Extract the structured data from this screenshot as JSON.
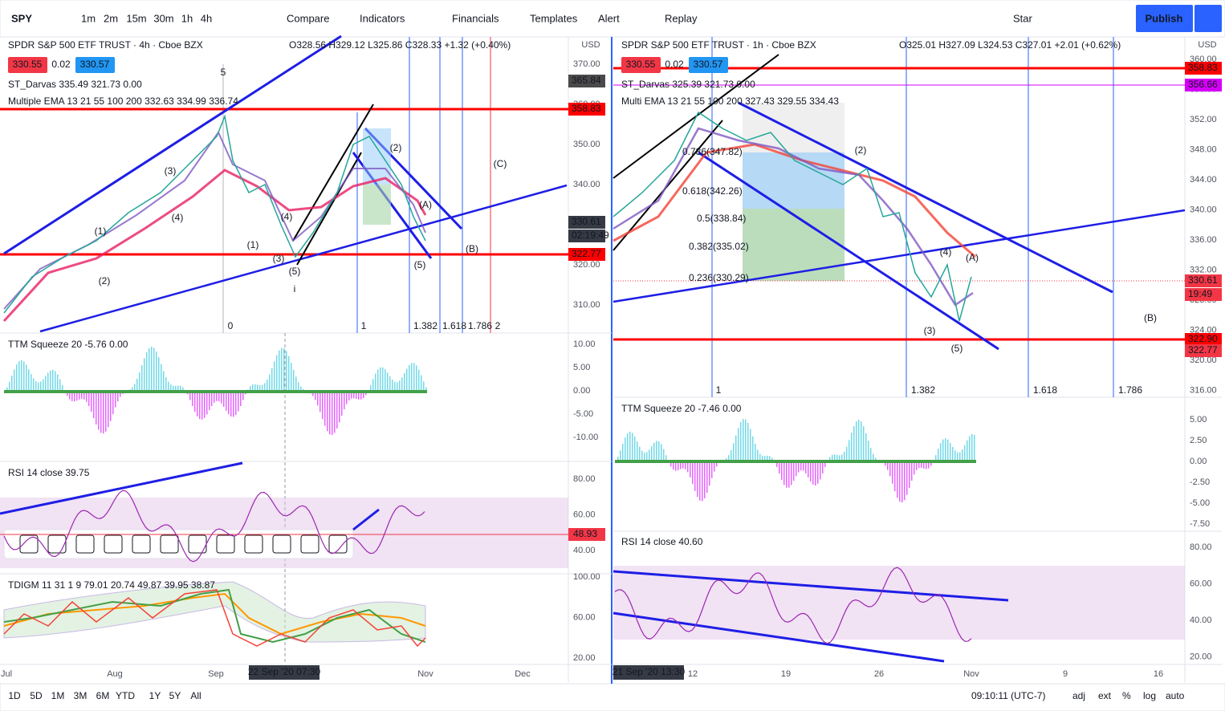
{
  "toolbar": {
    "symbol": "SPY",
    "intervals": [
      "1m",
      "2m",
      "15m",
      "30m",
      "1h",
      "4h"
    ],
    "buttons": [
      "Compare",
      "Indicators",
      "Financials",
      "Templates",
      "Alert",
      "Replay"
    ],
    "star": "Star",
    "publish": "Publish"
  },
  "panels": [
    {
      "title": "SPDR S&P 500 ETF TRUST · 4h · Cboe BZX",
      "ohlc": "O328.56 H329.12 L325.86 C328.33 +1.32 (+0.40%)",
      "bid": "330.55",
      "spread": "0.02",
      "ask": "330.57",
      "currency": "USD",
      "indicators": [
        "ST_Darvas 335.49 321.73 0.00",
        "Multiple EMA 13 21 55 100 200 332.63 334.99 336.74"
      ],
      "price_ticks": [
        "370.00",
        "360.00",
        "350.00",
        "340.00",
        "330.00",
        "320.00",
        "310.00"
      ],
      "price_labels": [
        "365.84",
        "358.83",
        "330.61",
        "02:19:49",
        "322.77"
      ],
      "fib_levels": [
        "1",
        "1.382",
        "1.618",
        "1.786",
        "2",
        "0"
      ],
      "annotations": [
        "(C)",
        "(B)",
        "(5)",
        "(A)",
        "(2)",
        "(5)",
        "(3)",
        "(1)",
        "(4)",
        "(3)",
        "(4)",
        "(2)",
        "(1)",
        "i",
        "5"
      ],
      "panes": [
        {
          "label": "TTM Squeeze 20 -5.76 0.00",
          "ticks": [
            "10.00",
            "5.00",
            "0.00",
            "-5.00",
            "-10.00"
          ]
        },
        {
          "label": "RSI 14 close 39.75",
          "ticks": [
            "80.00",
            "60.00",
            "40.00"
          ],
          "price_label": "48.93"
        },
        {
          "label": "TDIGM 11 31 1 9 79.01 20.74 49.87 39.95 38.87",
          "ticks": [
            "100.00",
            "60.00",
            "20.00"
          ]
        }
      ],
      "time_labels": [
        "Jul",
        "Aug",
        "Sep",
        "Nov",
        "Dec"
      ],
      "cursor_time": "22 Sep '20   07:30"
    },
    {
      "title": "SPDR S&P 500 ETF TRUST · 1h · Cboe BZX",
      "ohlc": "O325.01 H327.09 L324.53 C327.01 +2.01 (+0.62%)",
      "bid": "330.55",
      "spread": "0.02",
      "ask": "330.57",
      "currency": "USD",
      "indicators": [
        "ST_Darvas 325.39 321.73 0.00",
        "Multi EMA 13 21 55 100 200 327.43 329.55 334.43"
      ],
      "price_ticks": [
        "360.00",
        "356.00",
        "352.00",
        "348.00",
        "344.00",
        "340.00",
        "336.00",
        "332.00",
        "328.00",
        "324.00",
        "320.00",
        "316.00"
      ],
      "price_labels": [
        "358.83",
        "356.66",
        "330.61",
        "19:49",
        "322.90",
        "322.77"
      ],
      "fib_levels": [
        "1",
        "1.382",
        "1.618",
        "1.786"
      ],
      "annotations": [
        "(2)",
        "(A)",
        "(4)",
        "(3)",
        "(5)",
        "(B)",
        "0.786(347.82)",
        "0.618(342.26)",
        "0.5(338.84)",
        "0.382(335.02)",
        "0.236(330.29)"
      ],
      "panes": [
        {
          "label": "TTM Squeeze 20 -7.46 0.00",
          "ticks": [
            "5.00",
            "2.50",
            "0.00",
            "-2.50",
            "-5.00",
            "-7.50"
          ]
        },
        {
          "label": "RSI 14 close 40.60",
          "ticks": [
            "80.00",
            "60.00",
            "40.00",
            "20.00"
          ]
        }
      ],
      "time_labels": [
        "12",
        "19",
        "26",
        "Nov",
        "9",
        "16"
      ],
      "cursor_time": "21 Sep '20  13:30"
    }
  ],
  "bottom_bar": {
    "ranges": [
      "1D",
      "5D",
      "1M",
      "3M",
      "6M",
      "YTD",
      "1Y",
      "5Y",
      "All"
    ],
    "clock": "09:10:11 (UTC-7)",
    "options": [
      "adj",
      "ext",
      "%",
      "log",
      "auto"
    ]
  }
}
